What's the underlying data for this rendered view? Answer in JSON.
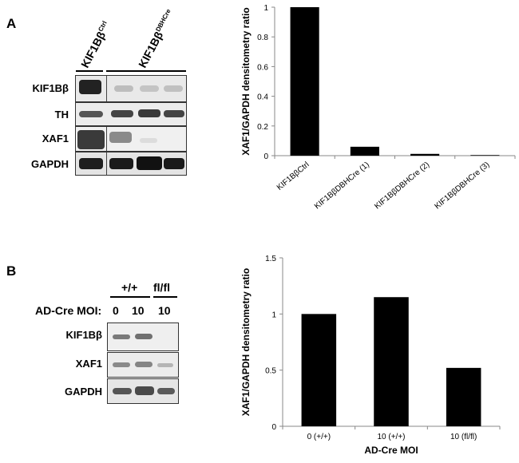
{
  "panel_a": {
    "letter": "A",
    "header_ctrl_base": "KIF1Bβ",
    "header_ctrl_sup": "Ctrl",
    "header_cre_base": "KIF1Bβ",
    "header_cre_sup": "DBHCre",
    "rows": [
      "KIF1Bβ",
      "TH",
      "XAF1",
      "GAPDH"
    ]
  },
  "panel_b": {
    "letter": "B",
    "group_wt": "+/+",
    "group_flfl": "fl/fl",
    "moi_label": "AD-Cre MOI:",
    "moi_values": [
      "0",
      "10",
      "10"
    ],
    "rows": [
      "KIF1Bβ",
      "XAF1",
      "GAPDH"
    ]
  },
  "chart_data": [
    {
      "type": "bar",
      "categories": [
        "KIF1BβCtrl",
        "KIF1BβDBHCre (1)",
        "KIF1BβDBHCre (2)",
        "KIF1BβDBHCre (3)"
      ],
      "values": [
        1.0,
        0.06,
        0.012,
        0.004
      ],
      "title": "",
      "xlabel": "",
      "ylabel": "XAF1/GAPDH densitometry ratio",
      "ylim": [
        0,
        1
      ],
      "yticks": [
        "0",
        "0.2",
        "0.4",
        "0.6",
        "0.8",
        "1"
      ],
      "grid": false,
      "bar_color": "#000000"
    },
    {
      "type": "bar",
      "categories": [
        "0 (+/+)",
        "10 (+/+)",
        "10 (fl/fl)"
      ],
      "values": [
        1.0,
        1.15,
        0.52
      ],
      "title": "",
      "xlabel": "AD-Cre MOI",
      "ylabel": "XAF1/GAPDH densitometry ratio",
      "ylim": [
        0,
        1.5
      ],
      "yticks": [
        "0",
        "0.5",
        "1",
        "1.5"
      ],
      "grid": false,
      "bar_color": "#000000"
    }
  ]
}
